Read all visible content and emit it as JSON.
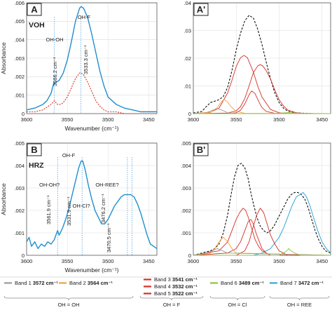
{
  "colors": {
    "blue": "#1f8fcf",
    "red": "#d6321f",
    "band1": "#9a9a9a",
    "band2": "#f0a23a",
    "band3": "#d62e24",
    "band6": "#8cc63f",
    "band7": "#37a6d9",
    "dashed": "#111111",
    "marker": "#3c9be0"
  },
  "chart_data": [
    {
      "type": "line",
      "panel_label": "A",
      "sample_label": "VOH",
      "ylabel": "Absorbance",
      "xlabel": "Wavenumber (cm⁻¹)",
      "xlim": [
        3600,
        3440
      ],
      "ylim": [
        0,
        0.006
      ],
      "x_ticks": [
        3600,
        3550,
        3500,
        3450
      ],
      "y_ticks": [
        0,
        0.001,
        0.002,
        0.003,
        0.004,
        0.005,
        0.006
      ],
      "peak_labels": [
        "OH-OH",
        "OH-F"
      ],
      "markers": [
        {
          "x": 3566.2,
          "label": "3566.2 cm⁻¹"
        },
        {
          "x": 3533.3,
          "label": "3533.3 cm⁻¹"
        }
      ],
      "series": [
        {
          "style": "solid-blue",
          "x": [
            3600,
            3590,
            3580,
            3575,
            3570,
            3567,
            3564,
            3560,
            3555,
            3550,
            3545,
            3540,
            3535,
            3533,
            3530,
            3525,
            3520,
            3515,
            3510,
            3505,
            3500,
            3490,
            3480,
            3470,
            3460,
            3450,
            3440
          ],
          "values": [
            0.0002,
            0.0003,
            0.0005,
            0.0007,
            0.0011,
            0.0016,
            0.0017,
            0.0018,
            0.0022,
            0.0029,
            0.0039,
            0.005,
            0.0057,
            0.0058,
            0.0057,
            0.0052,
            0.0043,
            0.0033,
            0.0023,
            0.0015,
            0.0009,
            0.0005,
            0.0003,
            0.0002,
            0.0001,
            0.0001,
            0.0001
          ]
        },
        {
          "style": "dotted-red",
          "x": [
            3600,
            3590,
            3580,
            3570,
            3566,
            3562,
            3558,
            3555,
            3550,
            3545,
            3540,
            3535,
            3533,
            3530,
            3525,
            3520,
            3515,
            3510,
            3505,
            3500,
            3490,
            3480,
            3470,
            3460,
            3450,
            3440
          ],
          "values": [
            0.0001,
            0.0001,
            0.0002,
            0.0005,
            0.0007,
            0.0005,
            0.0005,
            0.0006,
            0.0009,
            0.0014,
            0.0019,
            0.0022,
            0.0022,
            0.0021,
            0.0017,
            0.0012,
            0.0007,
            0.0004,
            0.0002,
            0.0001,
            0.0001,
            0,
            0,
            0,
            0,
            0
          ]
        }
      ]
    },
    {
      "type": "line",
      "panel_label": "A'",
      "xlim": [
        3600,
        3440
      ],
      "ylim": [
        0,
        0.04
      ],
      "x_ticks": [
        3600,
        3550,
        3500,
        3450
      ],
      "y_ticks": [
        0,
        0.01,
        0.02,
        0.03,
        0.04
      ],
      "series": [
        {
          "style": "dashed-black",
          "x": [
            3600,
            3590,
            3585,
            3580,
            3575,
            3570,
            3565,
            3560,
            3555,
            3550,
            3545,
            3540,
            3535,
            3530,
            3525,
            3520,
            3515,
            3510,
            3505,
            3500,
            3495,
            3490,
            3480,
            3470,
            3460,
            3450,
            3440
          ],
          "values": [
            0.0002,
            0.0008,
            0.0025,
            0.004,
            0.0045,
            0.005,
            0.0062,
            0.0095,
            0.0155,
            0.023,
            0.029,
            0.0335,
            0.0355,
            0.0345,
            0.0305,
            0.025,
            0.0185,
            0.0125,
            0.0075,
            0.004,
            0.002,
            0.0009,
            0.0003,
            0.0001,
            0,
            0,
            0
          ]
        },
        {
          "name": "Band 3",
          "style": "band3",
          "x": [
            3600,
            3580,
            3570,
            3560,
            3555,
            3550,
            3545,
            3541,
            3537,
            3530,
            3525,
            3520,
            3510,
            3500,
            3490,
            3470,
            3440
          ],
          "values": [
            0,
            0.0005,
            0.002,
            0.0075,
            0.012,
            0.017,
            0.0202,
            0.021,
            0.0202,
            0.015,
            0.01,
            0.006,
            0.0015,
            0.0003,
            0,
            0,
            0
          ]
        },
        {
          "name": "Band 4",
          "style": "band4",
          "x": [
            3600,
            3560,
            3550,
            3545,
            3540,
            3535,
            3532,
            3528,
            3524,
            3520,
            3515,
            3505,
            3440
          ],
          "values": [
            0,
            0,
            0.0003,
            0.0012,
            0.0035,
            0.0068,
            0.0082,
            0.0072,
            0.0045,
            0.0022,
            0.0008,
            0.0001,
            0
          ]
        },
        {
          "name": "Band 5",
          "style": "band5",
          "x": [
            3600,
            3560,
            3550,
            3545,
            3540,
            3535,
            3530,
            3525,
            3522,
            3519,
            3515,
            3510,
            3505,
            3500,
            3495,
            3490,
            3480,
            3470,
            3440
          ],
          "values": [
            0,
            0.0002,
            0.001,
            0.0025,
            0.0055,
            0.01,
            0.0148,
            0.0172,
            0.0177,
            0.0172,
            0.0155,
            0.0125,
            0.0085,
            0.005,
            0.0028,
            0.0013,
            0.0003,
            0,
            0
          ]
        },
        {
          "name": "Band 1",
          "style": "band1",
          "x": [
            3600,
            3585,
            3578,
            3572,
            3566,
            3560,
            3550,
            3440
          ],
          "values": [
            0,
            0.0003,
            0.0012,
            0.0018,
            0.0012,
            0.0003,
            0,
            0
          ]
        },
        {
          "name": "Band 2",
          "style": "band2",
          "x": [
            3600,
            3580,
            3572,
            3567,
            3564,
            3561,
            3556,
            3550,
            3540,
            3440
          ],
          "values": [
            0,
            0.0004,
            0.0022,
            0.0045,
            0.005,
            0.0045,
            0.0025,
            0.0008,
            0.0001,
            0
          ]
        },
        {
          "name": "Band 6",
          "style": "band6",
          "x": [
            3600,
            3510,
            3500,
            3494,
            3489,
            3484,
            3478,
            3470,
            3440
          ],
          "values": [
            0,
            0,
            0.0001,
            0.0003,
            0.0004,
            0.0003,
            0.0001,
            0,
            0
          ]
        }
      ]
    },
    {
      "type": "line",
      "panel_label": "B",
      "sample_label": "HRZ",
      "ylabel": "Absorbance",
      "xlabel": "Wavenumber (cm⁻¹)",
      "xlim": [
        3600,
        3440
      ],
      "ylim": [
        0,
        0.005
      ],
      "x_ticks": [
        3600,
        3550,
        3500,
        3450
      ],
      "y_ticks": [
        0,
        0.001,
        0.002,
        0.003,
        0.004,
        0.005
      ],
      "peak_labels": [
        "OH-OH?",
        "OH-F",
        "OH-Cl?",
        "OH-REE?"
      ],
      "markers": [
        {
          "x": 3561.9,
          "label": "3561.9 cm⁻¹"
        },
        {
          "x": 3531.9,
          "label": "3531.9 cm⁻¹"
        },
        {
          "x": 3476.2,
          "label": "3476.2 cm⁻¹"
        },
        {
          "x": 3470.5,
          "label": "3470.5 cm⁻¹"
        }
      ],
      "series": [
        {
          "style": "solid-blue",
          "x": [
            3600,
            3597,
            3594,
            3590,
            3586,
            3582,
            3578,
            3574,
            3570,
            3566,
            3562,
            3560,
            3556,
            3552,
            3548,
            3544,
            3540,
            3536,
            3533,
            3531,
            3528,
            3524,
            3520,
            3516,
            3512,
            3508,
            3504,
            3500,
            3496,
            3492,
            3488,
            3484,
            3480,
            3476,
            3472,
            3468,
            3464,
            3460,
            3456,
            3452,
            3448,
            3444,
            3440
          ],
          "values": [
            0.0006,
            0.0008,
            0.0004,
            0.0006,
            0.0003,
            0.0005,
            0.0004,
            0.0006,
            0.0005,
            0.0007,
            0.0011,
            0.0009,
            0.0012,
            0.0016,
            0.0021,
            0.0027,
            0.0033,
            0.0039,
            0.0042,
            0.0042,
            0.0038,
            0.0031,
            0.0025,
            0.002,
            0.0017,
            0.0014,
            0.0014,
            0.0016,
            0.0019,
            0.0022,
            0.0024,
            0.0026,
            0.0027,
            0.0027,
            0.0027,
            0.0026,
            0.0023,
            0.0019,
            0.0014,
            0.0009,
            0.0005,
            0.0004,
            0.0003
          ]
        }
      ]
    },
    {
      "type": "line",
      "panel_label": "B'",
      "xlim": [
        3600,
        3440
      ],
      "ylim": [
        0,
        0.005
      ],
      "x_ticks": [
        3600,
        3550,
        3500,
        3450
      ],
      "y_ticks": [
        0,
        0.001,
        0.002,
        0.003,
        0.004,
        0.005
      ],
      "series": [
        {
          "style": "dashed-black",
          "x": [
            3600,
            3590,
            3580,
            3575,
            3570,
            3565,
            3560,
            3556,
            3552,
            3548,
            3544,
            3540,
            3536,
            3533,
            3530,
            3526,
            3522,
            3518,
            3514,
            3510,
            3506,
            3502,
            3498,
            3494,
            3490,
            3486,
            3482,
            3478,
            3474,
            3470,
            3466,
            3462,
            3458,
            3454,
            3450,
            3446,
            3440
          ],
          "values": [
            0,
            0.0001,
            0.0002,
            0.0003,
            0.0005,
            0.001,
            0.0018,
            0.0027,
            0.0035,
            0.004,
            0.0041,
            0.0039,
            0.0034,
            0.0028,
            0.0023,
            0.0017,
            0.0013,
            0.0011,
            0.001,
            0.0011,
            0.0013,
            0.0016,
            0.0019,
            0.0022,
            0.0025,
            0.0027,
            0.0028,
            0.0028,
            0.0027,
            0.0025,
            0.0021,
            0.0016,
            0.0011,
            0.0007,
            0.0004,
            0.0002,
            0.0001
          ]
        },
        {
          "name": "Band 7",
          "style": "band7",
          "x": [
            3600,
            3530,
            3520,
            3510,
            3500,
            3495,
            3490,
            3485,
            3480,
            3476,
            3472,
            3468,
            3464,
            3460,
            3455,
            3450,
            3445,
            3440
          ],
          "values": [
            0,
            0,
            0.0001,
            0.0003,
            0.0008,
            0.0012,
            0.0017,
            0.0022,
            0.0026,
            0.0027,
            0.0028,
            0.0026,
            0.0022,
            0.0017,
            0.0011,
            0.0006,
            0.0003,
            0.0001
          ]
        },
        {
          "name": "Band 3",
          "style": "band3",
          "x": [
            3600,
            3570,
            3560,
            3555,
            3550,
            3546,
            3542,
            3539,
            3536,
            3532,
            3528,
            3524,
            3520,
            3510,
            3440
          ],
          "values": [
            0,
            0.0002,
            0.0006,
            0.0011,
            0.0016,
            0.0019,
            0.0021,
            0.002,
            0.0017,
            0.0012,
            0.0007,
            0.0004,
            0.0002,
            0,
            0
          ]
        },
        {
          "name": "Band 4",
          "style": "band4",
          "x": [
            3600,
            3560,
            3550,
            3545,
            3540,
            3536,
            3533,
            3530,
            3527,
            3523,
            3520,
            3515,
            3510,
            3440
          ],
          "values": [
            0,
            0.0001,
            0.0003,
            0.0006,
            0.0011,
            0.0015,
            0.0016,
            0.0014,
            0.001,
            0.0006,
            0.0003,
            0.0001,
            0,
            0
          ]
        },
        {
          "name": "Band 5",
          "style": "band5",
          "x": [
            3600,
            3550,
            3540,
            3535,
            3530,
            3526,
            3522,
            3518,
            3514,
            3510,
            3505,
            3500,
            3495,
            3490,
            3440
          ],
          "values": [
            0,
            0,
            0.0002,
            0.0006,
            0.0013,
            0.0018,
            0.0021,
            0.0019,
            0.0014,
            0.0009,
            0.0005,
            0.0002,
            0.0001,
            0,
            0
          ]
        },
        {
          "name": "Band 2",
          "style": "band2",
          "x": [
            3600,
            3580,
            3575,
            3570,
            3565,
            3560,
            3555,
            3550,
            3440
          ],
          "values": [
            0,
            0.0001,
            0.0003,
            0.0006,
            0.0008,
            0.0006,
            0.0003,
            0.0001,
            0
          ]
        },
        {
          "name": "Band 1",
          "style": "band1",
          "x": [
            3600,
            3585,
            3578,
            3572,
            3566,
            3560,
            3440
          ],
          "values": [
            0,
            0.0001,
            0.0002,
            0.0003,
            0.0002,
            0.0001,
            0
          ]
        },
        {
          "name": "Band 6",
          "style": "band6",
          "x": [
            3600,
            3500,
            3495,
            3491,
            3489,
            3486,
            3482,
            3475,
            3440
          ],
          "values": [
            0,
            0,
            0.0001,
            0.0002,
            0.0003,
            0.0002,
            0.0001,
            0,
            0
          ]
        }
      ]
    }
  ],
  "legend": {
    "items": [
      {
        "band": "Band 1",
        "num": "3572 cm⁻¹",
        "color": "#9a9a9a",
        "group": "OH = OH"
      },
      {
        "band": "Band 2",
        "num": "3564 cm⁻¹",
        "color": "#f0a23a",
        "group": "OH = OH"
      },
      {
        "band": "Band 3",
        "num": "3541 cm⁻¹",
        "color": "#d62e24",
        "group": "OH = F"
      },
      {
        "band": "Band 4",
        "num": "3532 cm⁻¹",
        "color": "#d62e24",
        "group": "OH = F"
      },
      {
        "band": "Band 5",
        "num": "3522 cm⁻¹",
        "color": "#d62e24",
        "group": "OH = F"
      },
      {
        "band": "Band 6",
        "num": "3489 cm⁻¹",
        "color": "#8cc63f",
        "group": "OH = Cl"
      },
      {
        "band": "Band 7",
        "num": "3472 cm⁻¹",
        "color": "#37a6d9",
        "group": "OH = REE"
      }
    ],
    "groups": [
      "OH = OH",
      "OH = F",
      "OH = Cl",
      "OH = REE"
    ]
  }
}
